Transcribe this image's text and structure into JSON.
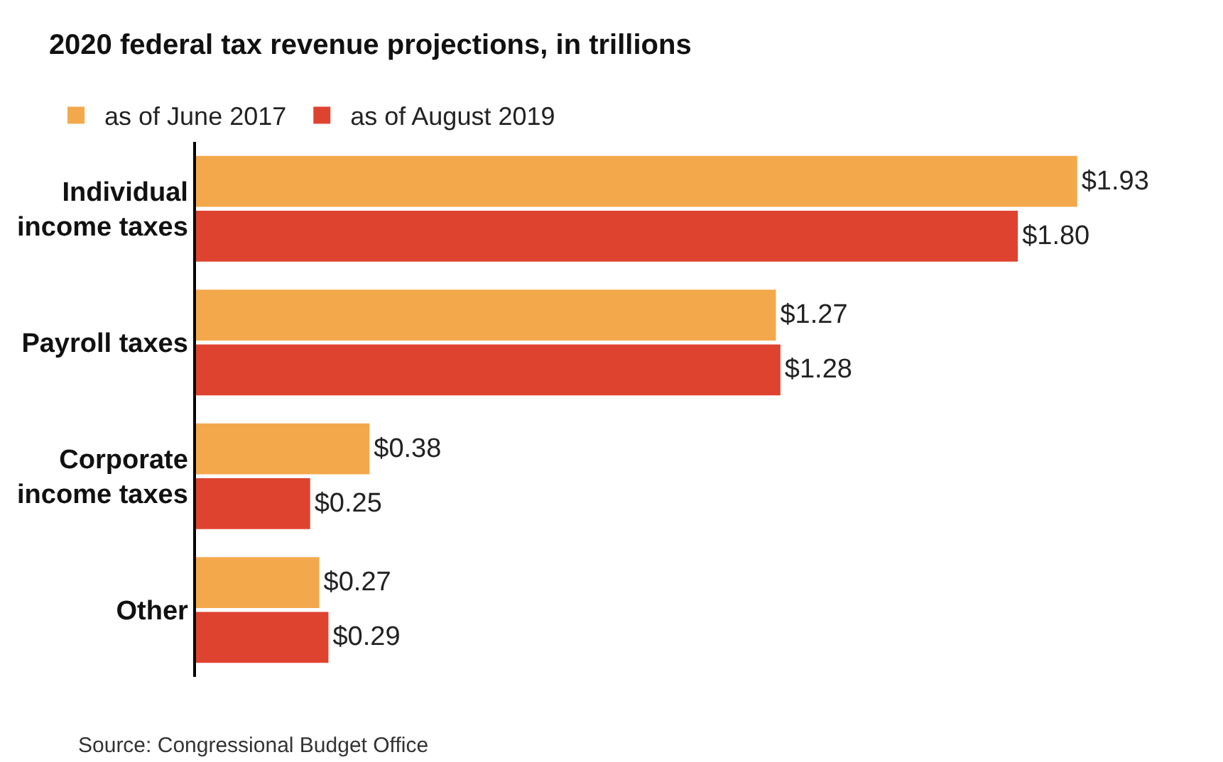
{
  "chart_data": {
    "type": "bar",
    "orientation": "horizontal",
    "title": "2020 federal tax revenue projections, in trillions",
    "categories": [
      "Individual\nincome taxes",
      "Payroll taxes",
      "Corporate\nincome taxes",
      "Other"
    ],
    "series": [
      {
        "name": "as of June 2017",
        "color": "#f4a84c",
        "values": [
          1.93,
          1.27,
          0.38,
          0.27
        ],
        "value_labels": [
          "$1.93",
          "$1.27",
          "$0.38",
          "$0.27"
        ]
      },
      {
        "name": "as of August 2019",
        "color": "#de4330",
        "values": [
          1.8,
          1.28,
          0.25,
          0.29
        ],
        "value_labels": [
          "$1.80",
          "$1.28",
          "$0.25",
          "$0.29"
        ]
      }
    ],
    "legend": "top left",
    "tick_labels": "y",
    "annotations": [
      "Source: Congressional Budget Office"
    ]
  }
}
